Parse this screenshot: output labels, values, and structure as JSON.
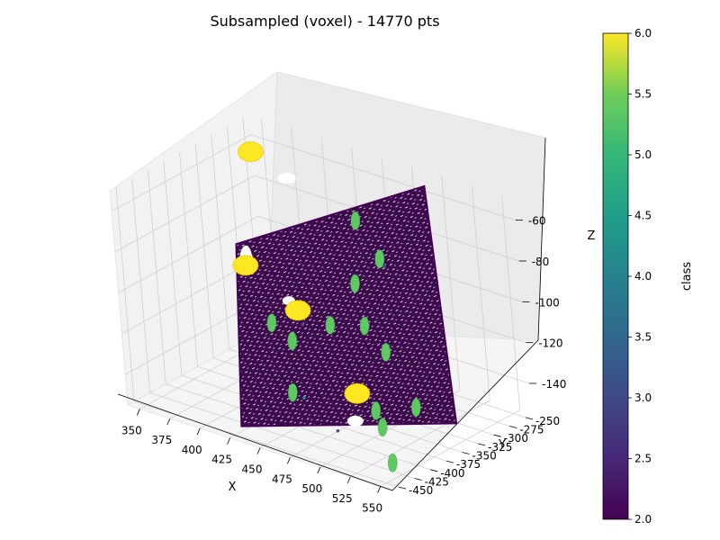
{
  "chart_data": {
    "type": "scatter",
    "projection": "3d",
    "title": "Subsampled (voxel) - 14770 pts",
    "xlabel": "X",
    "ylabel": "Y",
    "zlabel": "Z",
    "xlim": [
      340,
      560
    ],
    "ylim": [
      -460,
      -240
    ],
    "zlim": [
      -155,
      -50
    ],
    "x_ticks": [
      350,
      375,
      400,
      425,
      450,
      475,
      500,
      525,
      550
    ],
    "y_ticks": [
      -250,
      -275,
      -300,
      -325,
      -350,
      -375,
      -400,
      -425,
      -450
    ],
    "z_ticks": [
      -60,
      -80,
      -100,
      -120,
      -140
    ],
    "grid": true,
    "colormap": "viridis",
    "color_field": "class",
    "colorbar": {
      "label": "class",
      "range": [
        2.0,
        6.0
      ],
      "ticks": [
        "2.0",
        "2.5",
        "3.0",
        "3.5",
        "4.0",
        "4.5",
        "5.0",
        "5.5",
        "6.0"
      ]
    },
    "class_colors": {
      "2": "#440154",
      "3": "#3b528b",
      "4": "#21918c",
      "5": "#5ec962",
      "6": "#fde725"
    },
    "ground_plane": {
      "class": 2,
      "corners": [
        {
          "x": 345,
          "y": -285,
          "z": -105
        },
        {
          "x": 490,
          "y": -250,
          "z": -55
        },
        {
          "x": 560,
          "y": -355,
          "z": -140
        },
        {
          "x": 430,
          "y": -450,
          "z": -150
        }
      ]
    },
    "clusters": [
      {
        "class": 6,
        "x": 352,
        "y": -264,
        "z": -62
      },
      {
        "class": 6,
        "x": 360,
        "y": -300,
        "z": -110
      },
      {
        "class": 6,
        "x": 410,
        "y": -315,
        "z": -120
      },
      {
        "class": 6,
        "x": 500,
        "y": -395,
        "z": -130
      },
      {
        "class": 5,
        "x": 440,
        "y": -270,
        "z": -78
      },
      {
        "class": 5,
        "x": 475,
        "y": -300,
        "z": -85
      },
      {
        "class": 5,
        "x": 455,
        "y": -305,
        "z": -100
      },
      {
        "class": 5,
        "x": 480,
        "y": -340,
        "z": -110
      },
      {
        "class": 5,
        "x": 445,
        "y": -330,
        "z": -118
      },
      {
        "class": 5,
        "x": 502,
        "y": -350,
        "z": -117
      },
      {
        "class": 5,
        "x": 420,
        "y": -345,
        "z": -128
      },
      {
        "class": 5,
        "x": 398,
        "y": -335,
        "z": -125
      },
      {
        "class": 5,
        "x": 538,
        "y": -375,
        "z": -133
      },
      {
        "class": 5,
        "x": 512,
        "y": -390,
        "z": -137
      },
      {
        "class": 5,
        "x": 525,
        "y": -405,
        "z": -140
      },
      {
        "class": 5,
        "x": 445,
        "y": -395,
        "z": -140
      },
      {
        "class": 5,
        "x": 548,
        "y": -435,
        "z": -148
      },
      {
        "class": 3,
        "x": 430,
        "y": -345,
        "z": -118
      },
      {
        "class": 3,
        "x": 495,
        "y": -420,
        "z": -145
      },
      {
        "class": 3,
        "x": 470,
        "y": -285,
        "z": -92
      },
      {
        "class": 4,
        "x": 460,
        "y": -405,
        "z": -138
      }
    ]
  }
}
